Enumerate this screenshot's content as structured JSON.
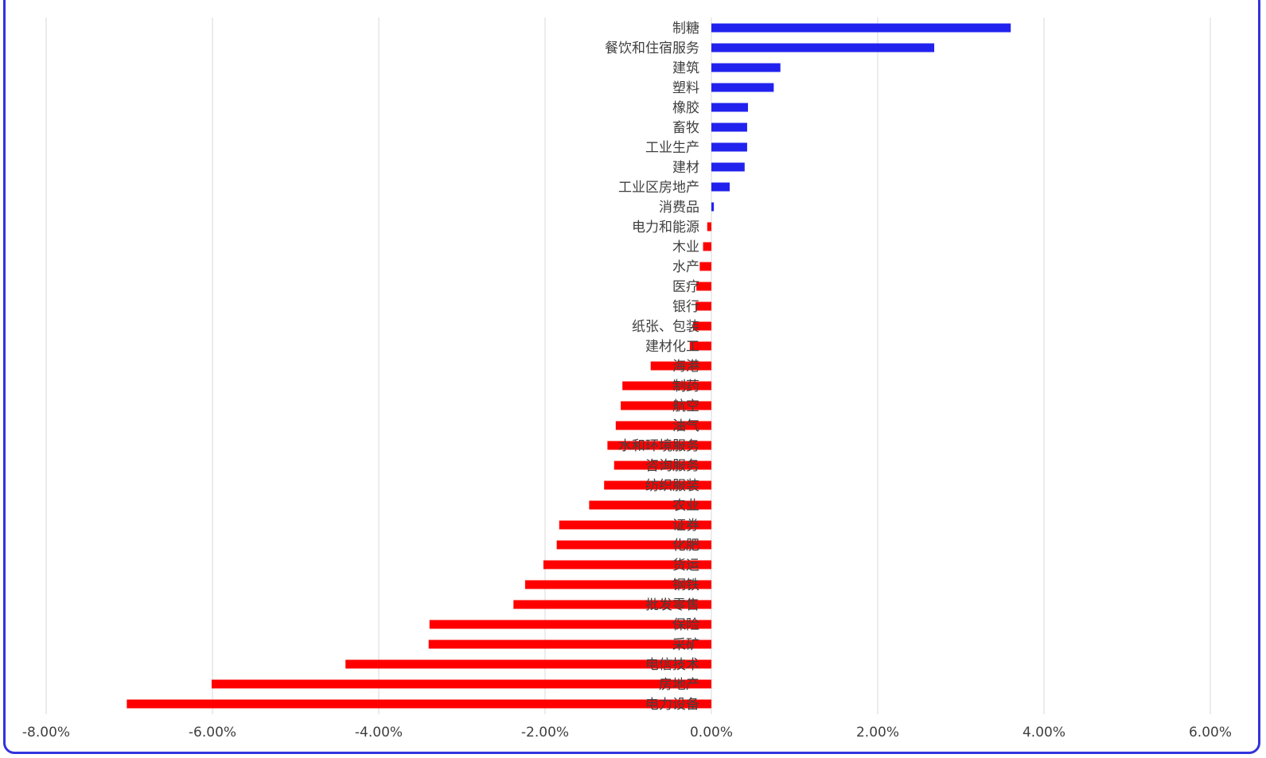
{
  "chart_data": {
    "type": "bar",
    "orientation": "horizontal",
    "categories": [
      "制糖",
      "餐饮和住宿服务",
      "建筑",
      "塑料",
      "橡胶",
      "畜牧",
      "工业生产",
      "建材",
      "工业区房地产",
      "消费品",
      "电力和能源",
      "木业",
      "水产",
      "医疗",
      "银行",
      "纸张、包装",
      "建材化工",
      "海港",
      "制药",
      "航空",
      "油气",
      "水和环境服务",
      "咨询服务",
      "纺织服装",
      "农业",
      "证券",
      "化肥",
      "货运",
      "钢铁",
      "批发零售",
      "保险",
      "采矿",
      "电信技术",
      "房地产",
      "电力设备"
    ],
    "values": [
      3.6,
      2.68,
      0.83,
      0.75,
      0.44,
      0.43,
      0.43,
      0.4,
      0.22,
      0.03,
      -0.05,
      -0.1,
      -0.14,
      -0.18,
      -0.19,
      -0.22,
      -0.26,
      -0.73,
      -1.07,
      -1.09,
      -1.15,
      -1.25,
      -1.17,
      -1.29,
      -1.47,
      -1.83,
      -1.86,
      -2.02,
      -2.24,
      -2.38,
      -3.39,
      -3.4,
      -4.4,
      -6.01,
      -7.03
    ],
    "xlim": [
      -8,
      6
    ],
    "xticks": [
      -8,
      -6,
      -4,
      -2,
      0,
      2,
      4,
      6
    ],
    "xtick_labels": [
      "-8.00%",
      "-6.00%",
      "-4.00%",
      "-2.00%",
      "0.00%",
      "2.00%",
      "4.00%",
      "6.00%"
    ],
    "grid": true,
    "positive_color": "#2222ee",
    "negative_color": "#ff0000",
    "title": "",
    "xlabel": "",
    "ylabel": ""
  }
}
